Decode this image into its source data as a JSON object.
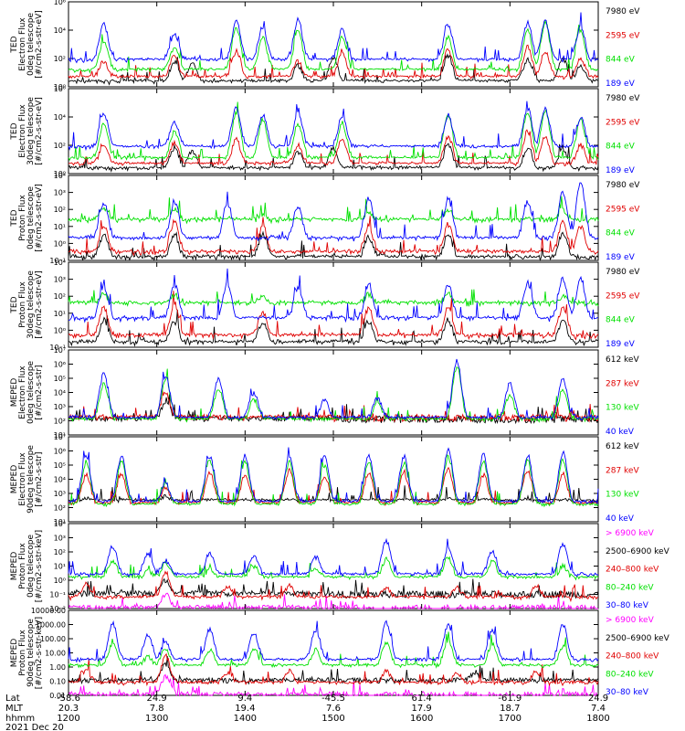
{
  "colors": {
    "black": "#000000",
    "red": "#e00000",
    "green": "#00e000",
    "blue": "#0000ff",
    "magenta": "#ff00ff"
  },
  "time_axis": {
    "row_labels": [
      "Lat",
      "MLT",
      "hhmm"
    ],
    "ticks": [
      {
        "lat": "-58.6",
        "mlt": "20.3",
        "hhmm": "1200"
      },
      {
        "lat": "24.9",
        "mlt": "7.8",
        "hhmm": "1300"
      },
      {
        "lat": "9.4",
        "mlt": "19.4",
        "hhmm": "1400"
      },
      {
        "lat": "-45.5",
        "mlt": "7.6",
        "hhmm": "1500"
      },
      {
        "lat": "61.4",
        "mlt": "17.9",
        "hhmm": "1600"
      },
      {
        "lat": "-61.9",
        "mlt": "18.7",
        "hhmm": "1700"
      },
      {
        "lat": "24.9",
        "mlt": "7.4",
        "hhmm": "1800"
      }
    ],
    "date": "2021 Dec 20"
  },
  "chart_data": [
    {
      "type": "line",
      "ylabel": "TED\nElectron Flux\n0deg telescope\n[#/cm2-s-str-eV]",
      "y_scale": "log",
      "ylim": [
        1,
        1000000.0
      ],
      "yticks": [
        "10⁰",
        "10²",
        "10⁴",
        "10⁶"
      ],
      "x": [
        "1200",
        "1800"
      ],
      "series": [
        {
          "name": "7980 eV",
          "color": "black",
          "hours": [
            1.2,
            1.4,
            2.6,
            3.0,
            4.3,
            5.2,
            5.6,
            5.8
          ],
          "peak": [
            1.8,
            1.6,
            1.5,
            2.0,
            2.2,
            1.9,
            2.0,
            1.5
          ],
          "baseline": 0.3
        },
        {
          "name": "2595 eV",
          "color": "red",
          "hours": [
            0.4,
            1.2,
            1.9,
            2.6,
            3.1,
            4.3,
            5.2,
            5.4,
            5.8
          ],
          "peak": [
            1.8,
            2.2,
            2.5,
            1.8,
            2.4,
            2.6,
            2.8,
            2.5,
            2.0
          ],
          "baseline": 0.6
        },
        {
          "name": "844 eV",
          "color": "green",
          "hours": [
            0.4,
            1.2,
            1.9,
            2.2,
            2.6,
            3.1,
            4.3,
            5.2,
            5.4,
            5.8
          ],
          "peak": [
            3.2,
            2.8,
            4.2,
            3.5,
            4.0,
            3.5,
            3.5,
            4.0,
            4.6,
            4.0
          ],
          "baseline": 1.1
        },
        {
          "name": "189 eV",
          "color": "blue",
          "hours": [
            0.4,
            1.2,
            1.9,
            2.2,
            2.6,
            3.1,
            4.3,
            5.2,
            5.4,
            5.8
          ],
          "peak": [
            4.4,
            3.8,
            4.6,
            4.2,
            4.7,
            4.0,
            4.4,
            4.5,
            4.6,
            4.3
          ],
          "baseline": 1.8
        }
      ]
    },
    {
      "type": "line",
      "ylabel": "TED\nElectron Flux\n30deg telescope\n[#/cm2-s-str-eV]",
      "y_scale": "log",
      "ylim": [
        1,
        1000000.0
      ],
      "yticks": [
        "10⁰",
        "10²",
        "10⁴",
        "10⁶"
      ],
      "x": [
        "1200",
        "1800"
      ],
      "series": [
        {
          "name": "7980 eV",
          "color": "black",
          "hours": [
            1.2,
            1.4,
            2.6,
            3.0,
            4.3,
            5.2,
            5.6
          ],
          "peak": [
            1.8,
            1.6,
            1.5,
            1.8,
            2.0,
            1.8,
            1.7
          ],
          "baseline": 0.3
        },
        {
          "name": "2595 eV",
          "color": "red",
          "hours": [
            0.4,
            1.2,
            1.9,
            2.6,
            3.1,
            4.3,
            5.2,
            5.4,
            5.8
          ],
          "peak": [
            2.0,
            2.2,
            2.4,
            2.0,
            2.5,
            2.6,
            3.0,
            2.6,
            2.0
          ],
          "baseline": 0.6
        },
        {
          "name": "844 eV",
          "color": "green",
          "hours": [
            0.4,
            1.2,
            1.9,
            2.2,
            2.6,
            3.1,
            4.3,
            5.2,
            5.4,
            5.8
          ],
          "peak": [
            3.6,
            3.0,
            4.3,
            3.8,
            3.5,
            3.6,
            4.2,
            4.4,
            4.5,
            3.8
          ],
          "baseline": 1.0
        },
        {
          "name": "189 eV",
          "color": "blue",
          "hours": [
            0.4,
            1.2,
            1.9,
            2.2,
            2.6,
            3.1,
            4.3,
            5.2,
            5.4,
            5.8
          ],
          "peak": [
            4.3,
            3.7,
            4.6,
            4.1,
            4.3,
            4.0,
            4.1,
            4.6,
            4.6,
            3.9
          ],
          "baseline": 1.8
        }
      ]
    },
    {
      "type": "line",
      "ylabel": "TED\nProton Flux\n0deg telescope\n[#/cm2-s-str-eV]",
      "y_scale": "log",
      "ylim": [
        0.1,
        10000.0
      ],
      "yticks": [
        "10⁻¹",
        "10⁰",
        "10¹",
        "10²",
        "10³",
        "10⁴"
      ],
      "x": [
        "1200",
        "1800"
      ],
      "series": [
        {
          "name": "7980 eV",
          "color": "black",
          "hours": [
            0.4,
            1.2,
            2.2,
            3.4,
            4.3,
            5.6
          ],
          "peak": [
            0.5,
            0.4,
            0.5,
            0.4,
            0.5,
            0.6
          ],
          "baseline": -0.9
        },
        {
          "name": "2595 eV",
          "color": "red",
          "hours": [
            0.4,
            1.2,
            2.2,
            3.4,
            4.3,
            5.6,
            5.8
          ],
          "peak": [
            1.0,
            1.3,
            1.0,
            1.0,
            1.1,
            1.2,
            1.0
          ],
          "baseline": -0.6
        },
        {
          "name": "844 eV",
          "color": "green",
          "hours": [
            0.4,
            1.2,
            2.2,
            3.4,
            4.3,
            5.6
          ],
          "peak": [
            2.1,
            2.0,
            1.6,
            1.8,
            1.9,
            2.0
          ],
          "baseline": 1.3
        },
        {
          "name": "189 eV",
          "color": "blue",
          "hours": [
            0.4,
            1.2,
            1.8,
            2.6,
            3.4,
            4.3,
            5.2,
            5.6,
            5.8
          ],
          "peak": [
            2.4,
            2.5,
            2.4,
            2.2,
            2.6,
            2.6,
            2.5,
            3.0,
            3.7
          ],
          "baseline": 0.2
        }
      ]
    },
    {
      "type": "line",
      "ylabel": "TED\nProton Flux\n30deg telescope\n[#/cm2-s-str-eV]",
      "y_scale": "log",
      "ylim": [
        0.1,
        10000.0
      ],
      "yticks": [
        "10⁻¹",
        "10⁰",
        "10¹",
        "10²",
        "10³",
        "10⁴"
      ],
      "x": [
        "1200",
        "1800"
      ],
      "series": [
        {
          "name": "7980 eV",
          "color": "black",
          "hours": [
            0.4,
            1.2,
            2.2,
            3.4,
            4.3,
            5.6
          ],
          "peak": [
            0.6,
            0.5,
            0.5,
            0.5,
            0.6,
            0.6
          ],
          "baseline": -0.8
        },
        {
          "name": "2595 eV",
          "color": "red",
          "hours": [
            0.4,
            1.2,
            2.2,
            3.4,
            4.3,
            5.6
          ],
          "peak": [
            1.3,
            1.6,
            1.1,
            1.3,
            1.3,
            1.4
          ],
          "baseline": -0.4
        },
        {
          "name": "844 eV",
          "color": "green",
          "hours": [
            0.4,
            1.2,
            2.2,
            3.4,
            4.3,
            5.6
          ],
          "peak": [
            2.1,
            2.1,
            2.0,
            2.1,
            2.1,
            2.0
          ],
          "baseline": 1.5
        },
        {
          "name": "189 eV",
          "color": "blue",
          "hours": [
            0.4,
            1.2,
            1.8,
            2.6,
            3.4,
            4.3,
            5.2,
            5.6,
            5.8
          ],
          "peak": [
            2.6,
            2.7,
            2.7,
            2.5,
            2.7,
            2.7,
            2.8,
            3.0,
            3.1
          ],
          "baseline": 0.6
        }
      ]
    },
    {
      "type": "line",
      "ylabel": "MEPED\nElectron Flux\n0deg telescope\n[#/cm2-s-str]",
      "y_scale": "log",
      "ylim": [
        10,
        10000000.0
      ],
      "yticks": [
        "10¹",
        "10²",
        "10³",
        "10⁴",
        "10⁵",
        "10⁶",
        "10⁷"
      ],
      "x": [
        "1200",
        "1800"
      ],
      "series": [
        {
          "name": "612 keV",
          "color": "black",
          "hours": [
            1.1
          ],
          "peak": [
            3.2
          ],
          "baseline": 2.1
        },
        {
          "name": "287 keV",
          "color": "red",
          "hours": [
            1.1
          ],
          "peak": [
            4.0
          ],
          "baseline": 2.2
        },
        {
          "name": "130 keV",
          "color": "green",
          "hours": [
            0.4,
            1.1,
            1.7,
            2.1,
            3.5,
            4.4,
            5.0,
            5.6
          ],
          "peak": [
            4.6,
            5.0,
            4.3,
            3.5,
            3.3,
            5.8,
            3.8,
            4.2
          ],
          "baseline": 2.0
        },
        {
          "name": "40 keV",
          "color": "blue",
          "hours": [
            0.4,
            1.1,
            1.7,
            2.1,
            2.9,
            3.5,
            4.4,
            5.0,
            5.6
          ],
          "peak": [
            5.3,
            5.2,
            5.0,
            4.0,
            3.4,
            3.6,
            6.3,
            4.6,
            5.0
          ],
          "baseline": 2.1
        }
      ]
    },
    {
      "type": "line",
      "ylabel": "MEPED\nElectron Flux\n90deg telescope\n[#/cm2-s-str]",
      "y_scale": "log",
      "ylim": [
        10,
        10000000.0
      ],
      "yticks": [
        "10¹",
        "10²",
        "10³",
        "10⁴",
        "10⁵",
        "10⁶",
        "10⁷"
      ],
      "x": [
        "1200",
        "1800"
      ],
      "series": [
        {
          "name": "612 keV",
          "color": "black",
          "hours": [
            0.2,
            0.6,
            1.1,
            1.6,
            2.0,
            2.5,
            2.9,
            3.4,
            3.8,
            4.3,
            4.7,
            5.2,
            5.6
          ],
          "peak": [
            2.6,
            2.5,
            2.8,
            2.5,
            2.5,
            2.5,
            2.5,
            2.5,
            2.5,
            2.6,
            2.5,
            2.6,
            2.5
          ],
          "baseline": 2.4
        },
        {
          "name": "287 keV",
          "color": "red",
          "hours": [
            0.2,
            0.6,
            1.1,
            1.6,
            2.0,
            2.5,
            2.9,
            3.4,
            3.8,
            4.3,
            4.7,
            5.2,
            5.6
          ],
          "peak": [
            4.3,
            4.3,
            3.4,
            4.5,
            4.3,
            4.6,
            4.2,
            4.4,
            4.4,
            4.8,
            4.3,
            4.6,
            4.4
          ],
          "baseline": 2.2
        },
        {
          "name": "130 keV",
          "color": "green",
          "hours": [
            0.2,
            0.6,
            1.1,
            1.6,
            2.0,
            2.5,
            2.9,
            3.4,
            3.8,
            4.3,
            4.7,
            5.2,
            5.6
          ],
          "peak": [
            5.1,
            5.2,
            3.6,
            5.4,
            5.2,
            5.2,
            5.0,
            5.3,
            5.1,
            5.6,
            5.2,
            5.3,
            5.3
          ],
          "baseline": 2.1
        },
        {
          "name": "40 keV",
          "color": "blue",
          "hours": [
            0.2,
            0.6,
            1.1,
            1.6,
            2.0,
            2.5,
            2.9,
            3.4,
            3.8,
            4.3,
            4.7,
            5.2,
            5.6
          ],
          "peak": [
            5.6,
            5.6,
            3.7,
            5.6,
            5.7,
            5.6,
            5.6,
            5.7,
            5.6,
            6.1,
            5.7,
            5.7,
            5.9
          ],
          "baseline": 2.3
        }
      ]
    },
    {
      "type": "line",
      "ylabel": "MEPED\nProton Flux\n0deg telescope\n[#/cm2-s-str-keV]",
      "y_scale": "log",
      "ylim": [
        0.01,
        10000.0
      ],
      "yticks": [
        "10⁻²",
        "10⁻¹",
        "10⁰",
        "10¹",
        "10²",
        "10³",
        "10⁴"
      ],
      "x": [
        "1200",
        "1800"
      ],
      "series": [
        {
          "name": "> 6900 keV",
          "color": "magenta",
          "hours": [
            1.1
          ],
          "peak": [
            -1.0
          ],
          "baseline": -2.0
        },
        {
          "name": "2500–6900 keV",
          "color": "black",
          "hours": [
            1.1
          ],
          "peak": [
            0.0
          ],
          "baseline": -1.0
        },
        {
          "name": "240–800 keV",
          "color": "red",
          "hours": [
            0.2,
            1.1,
            1.8,
            2.5,
            3.6,
            4.4,
            5.3
          ],
          "peak": [
            -0.3,
            0.6,
            -0.4,
            -0.4,
            -0.5,
            -0.5,
            -0.4
          ],
          "baseline": -1.3
        },
        {
          "name": "80–240 keV",
          "color": "green",
          "hours": [
            0.5,
            0.9,
            1.1,
            1.6,
            2.1,
            2.8,
            3.6,
            4.3,
            4.8,
            5.6
          ],
          "peak": [
            1.4,
            0.6,
            1.2,
            0.7,
            1.0,
            0.9,
            1.5,
            1.6,
            1.3,
            1.0
          ],
          "baseline": 0.1
        },
        {
          "name": "30–80 keV",
          "color": "blue",
          "hours": [
            0.5,
            0.9,
            1.1,
            1.6,
            2.1,
            2.8,
            3.6,
            4.3,
            4.8,
            5.6
          ],
          "peak": [
            2.4,
            1.8,
            1.4,
            1.9,
            1.8,
            1.6,
            2.8,
            2.2,
            2.1,
            2.5
          ],
          "baseline": 0.3
        }
      ]
    },
    {
      "type": "line",
      "ylabel": "MEPED\nProton Flux\n90deg telescope\n[#/cm2-s-str-keV]",
      "y_scale": "log",
      "ylim": [
        0.01,
        10000
      ],
      "yticks": [
        "0.01",
        "0.10",
        "1.00",
        "10.00",
        "100.00",
        "1000.00",
        "10000.00"
      ],
      "x": [
        "1200",
        "1800"
      ],
      "series": [
        {
          "name": "> 6900 keV",
          "color": "magenta",
          "hours": [
            1.1
          ],
          "peak": [
            -0.7
          ],
          "baseline": -2.0
        },
        {
          "name": "2500–6900 keV",
          "color": "black",
          "hours": [
            1.1,
            4.6
          ],
          "peak": [
            0.2,
            -0.5
          ],
          "baseline": -1.0
        },
        {
          "name": "240–800 keV",
          "color": "red",
          "hours": [
            0.2,
            1.1,
            1.8,
            2.5,
            3.6,
            4.4,
            5.3
          ],
          "peak": [
            -0.2,
            0.8,
            -0.4,
            -0.3,
            -0.3,
            -0.4,
            -0.3
          ],
          "baseline": -1.2
        },
        {
          "name": "80–240 keV",
          "color": "green",
          "hours": [
            0.5,
            0.9,
            1.1,
            1.6,
            2.1,
            2.8,
            3.6,
            4.3,
            4.8,
            5.6
          ],
          "peak": [
            1.6,
            0.7,
            1.3,
            1.2,
            1.3,
            1.2,
            1.7,
            1.9,
            1.6,
            1.4
          ],
          "baseline": 0.0
        },
        {
          "name": "30–80 keV",
          "color": "blue",
          "hours": [
            0.5,
            0.9,
            1.1,
            1.6,
            2.1,
            2.8,
            3.6,
            4.3,
            4.8,
            5.6
          ],
          "peak": [
            3.1,
            2.3,
            1.8,
            2.6,
            2.4,
            2.6,
            3.1,
            3.0,
            2.6,
            3.0
          ],
          "baseline": 0.4
        }
      ]
    }
  ]
}
